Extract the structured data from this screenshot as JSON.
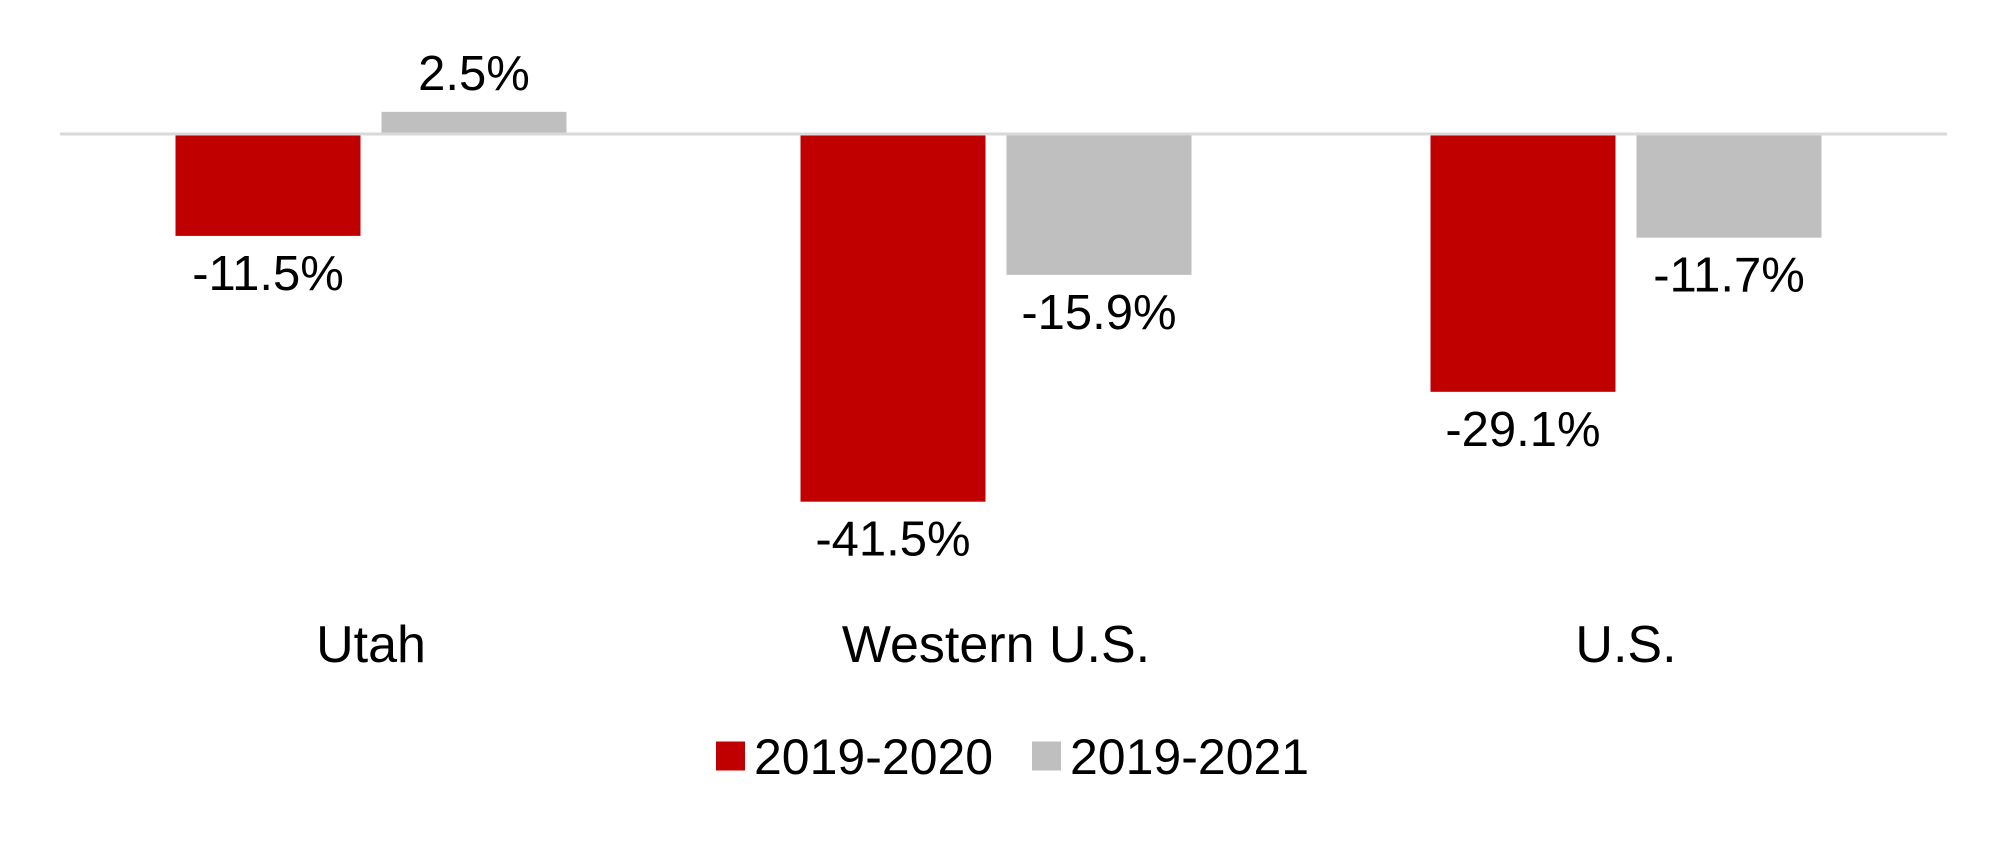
{
  "chart_data": {
    "type": "bar",
    "categories": [
      "Utah",
      "Western U.S.",
      "U.S."
    ],
    "series": [
      {
        "name": "2019-2020",
        "values": [
          -11.5,
          -41.5,
          -29.1
        ],
        "labels": [
          "-11.5%",
          "-41.5%",
          "-29.1%"
        ],
        "color": "#C00000"
      },
      {
        "name": "2019-2021",
        "values": [
          2.5,
          -15.9,
          -11.7
        ],
        "labels": [
          "2.5%",
          "-15.9%",
          "-11.7%"
        ],
        "color": "#BFBFBF"
      }
    ],
    "value_format": "percent",
    "ylim": [
      -41.5,
      2.5
    ],
    "grid": false,
    "axis_line": true,
    "legend_position": "bottom",
    "axis_line_color": "#D9D9D9"
  }
}
